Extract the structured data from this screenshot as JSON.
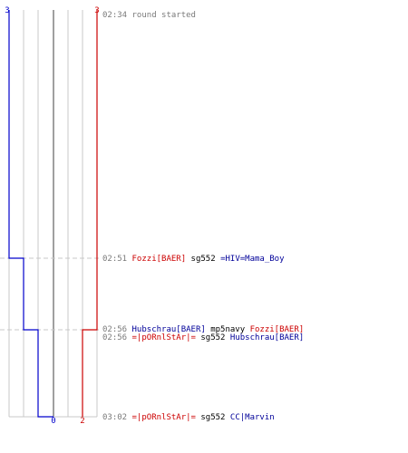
{
  "colors": {
    "team_red": "#cc0000",
    "team_blue": "#0000cc",
    "grid": "#c8c8c8",
    "center": "#808080",
    "dashed": "#c8c8c8",
    "time_text": "#7a7a7a"
  },
  "chart_data": {
    "type": "line",
    "x_unit": "minute:second",
    "t_range": [
      "02:34",
      "03:02"
    ],
    "x_range": [
      -3,
      3
    ],
    "series": [
      {
        "team": "blue",
        "points": [
          {
            "t": "02:34",
            "v": 3
          },
          {
            "t": "02:51",
            "v": 2
          },
          {
            "t": "02:56",
            "v": 1
          },
          {
            "t": "03:02",
            "v": 0
          }
        ]
      },
      {
        "team": "red",
        "points": [
          {
            "t": "02:34",
            "v": 3
          },
          {
            "t": "02:56",
            "v": 2
          },
          {
            "t": "03:02",
            "v": 2
          }
        ]
      }
    ],
    "top_labels": {
      "left": "3",
      "right": "3"
    },
    "bottom_labels": {
      "blue": "0",
      "red": "2"
    }
  },
  "events": [
    {
      "time": "02:34",
      "parts": [
        {
          "text": "round started",
          "style": "plain"
        }
      ]
    },
    {
      "time": "02:51",
      "parts": [
        {
          "text": "Fozzi[BAER]",
          "style": "red"
        },
        {
          "text": " sg552 ",
          "style": "weapon"
        },
        {
          "text": "=HIV=Mama_Boy",
          "style": "blue"
        }
      ]
    },
    {
      "time": "02:56",
      "parts": [
        {
          "text": "Hubschrau[BAER]",
          "style": "blue"
        },
        {
          "text": " mp5navy ",
          "style": "weapon"
        },
        {
          "text": "Fozzi[BAER]",
          "style": "red"
        }
      ]
    },
    {
      "time": "02:56",
      "parts": [
        {
          "text": "=|pORnlStAr|=",
          "style": "red"
        },
        {
          "text": " sg552 ",
          "style": "weapon"
        },
        {
          "text": "Hubschrau[BAER]",
          "style": "blue"
        }
      ]
    },
    {
      "time": "03:02",
      "parts": [
        {
          "text": "=|pORnlStAr|=",
          "style": "red"
        },
        {
          "text": " sg552 ",
          "style": "weapon"
        },
        {
          "text": "CC|Marvin",
          "style": "blue"
        }
      ]
    }
  ]
}
